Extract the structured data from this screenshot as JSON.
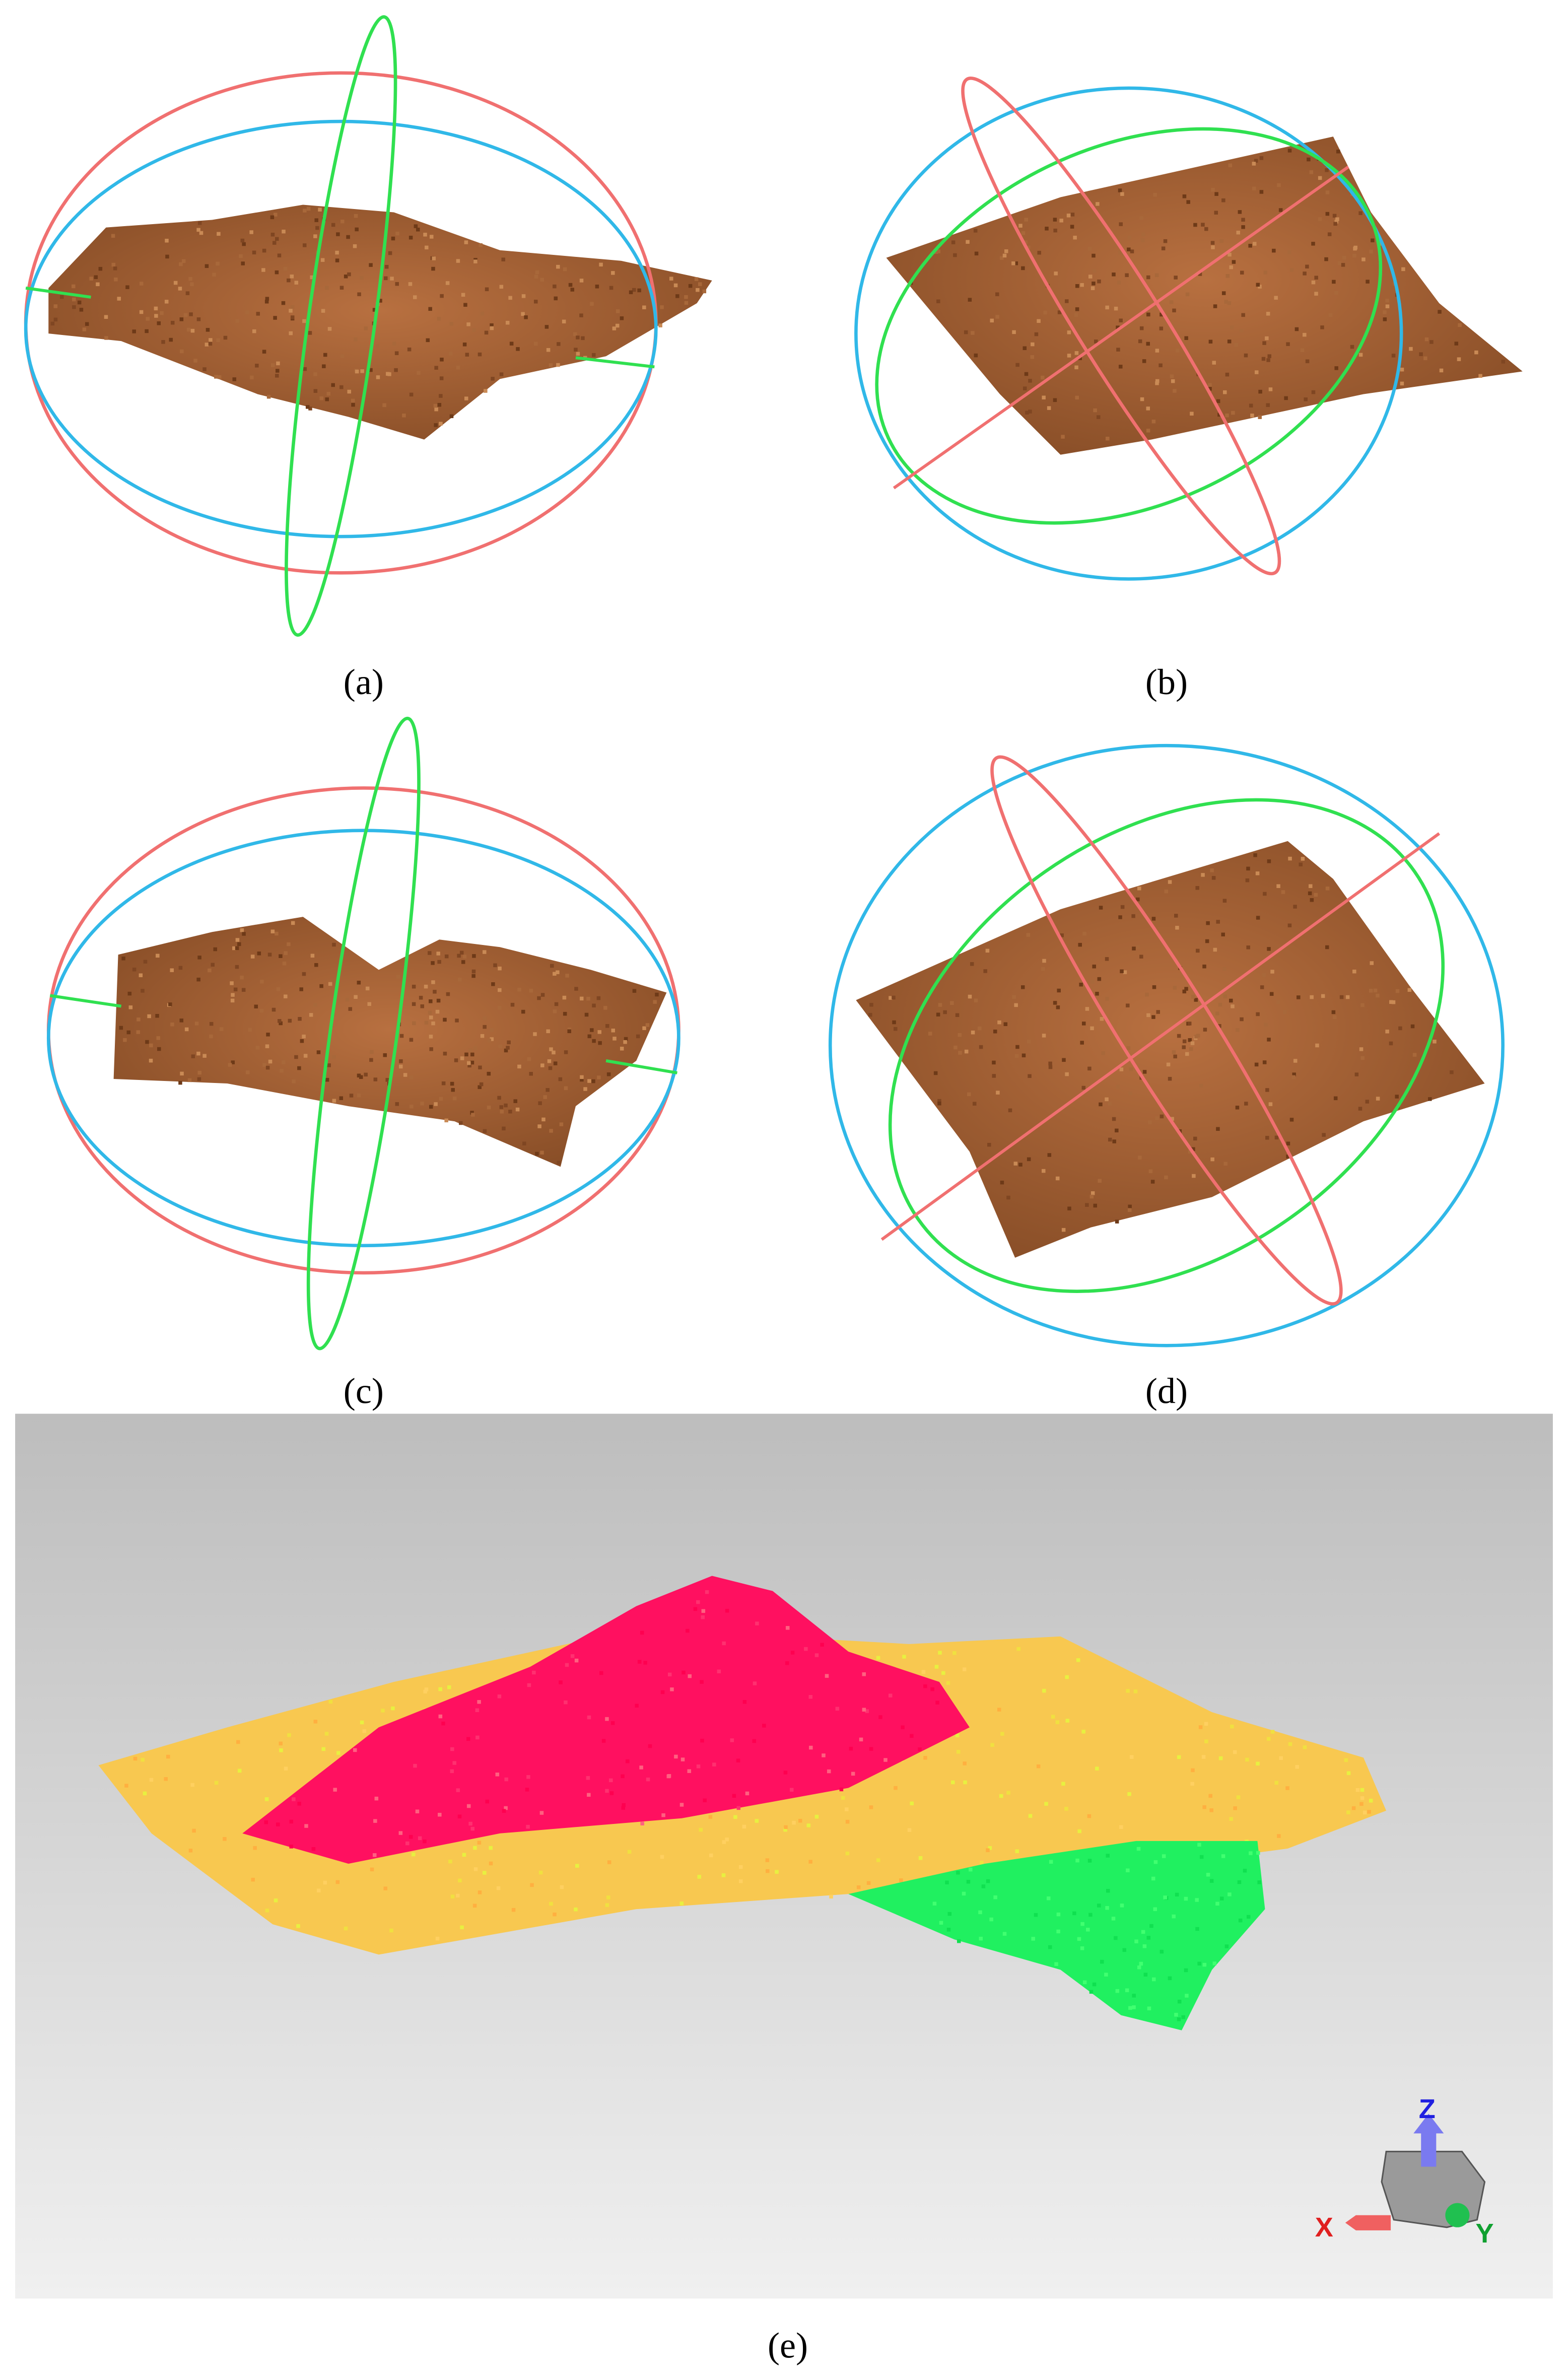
{
  "panels": [
    {
      "label": "(a)"
    },
    {
      "label": "(b)"
    },
    {
      "label": "(c)"
    },
    {
      "label": "(d)"
    },
    {
      "label": "(e)"
    }
  ],
  "axes": {
    "x": "X",
    "y": "Y",
    "z": "Z"
  }
}
